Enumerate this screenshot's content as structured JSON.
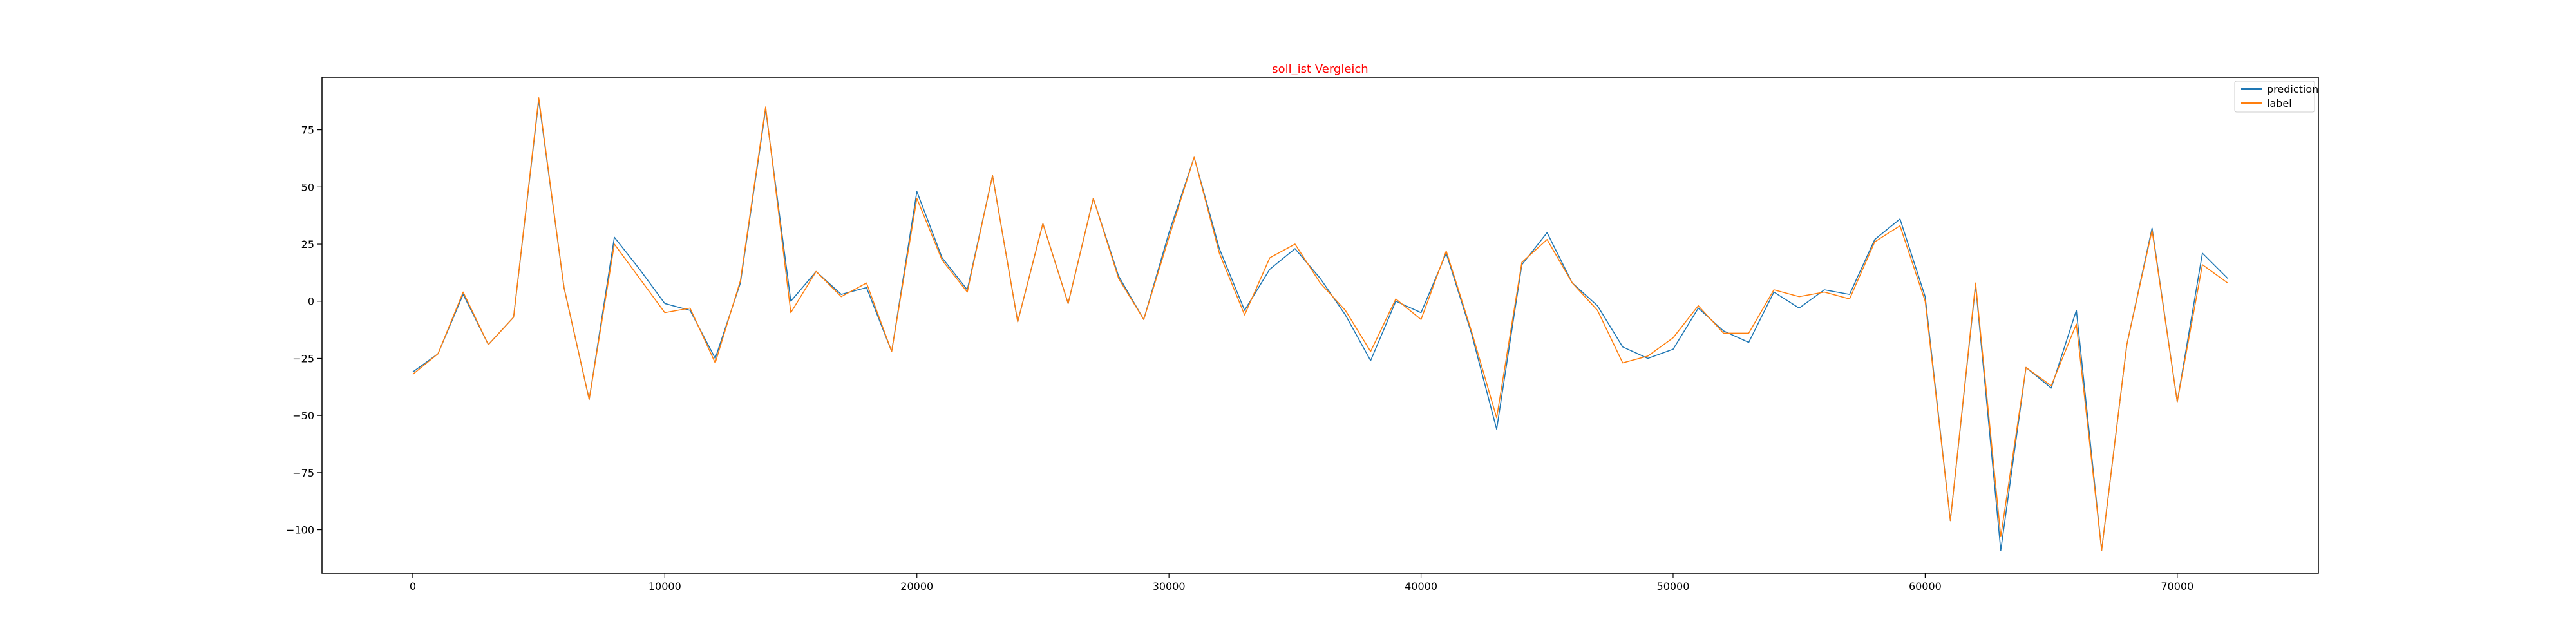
{
  "chart_data": {
    "type": "line",
    "title": "soll_ist Vergleich",
    "title_color": "#ff0000",
    "xlabel": "",
    "ylabel": "",
    "xlim": [
      -3600,
      75600
    ],
    "ylim": [
      -119,
      98
    ],
    "x_ticks": [
      0,
      10000,
      20000,
      30000,
      40000,
      50000,
      60000,
      70000
    ],
    "y_ticks": [
      -100,
      -75,
      -50,
      -25,
      0,
      25,
      50,
      75
    ],
    "grid": false,
    "legend_position": "top-right",
    "x": [
      0,
      1000,
      2000,
      3000,
      4000,
      5000,
      6000,
      7000,
      8000,
      9000,
      10000,
      11000,
      12000,
      13000,
      14000,
      15000,
      16000,
      17000,
      18000,
      19000,
      20000,
      21000,
      22000,
      23000,
      24000,
      25000,
      26000,
      27000,
      28000,
      29000,
      30000,
      31000,
      32000,
      33000,
      34000,
      35000,
      36000,
      37000,
      38000,
      39000,
      40000,
      41000,
      42000,
      43000,
      44000,
      45000,
      46000,
      47000,
      48000,
      49000,
      50000,
      51000,
      52000,
      53000,
      54000,
      55000,
      56000,
      57000,
      58000,
      59000,
      60000,
      61000,
      62000,
      63000,
      64000,
      65000,
      66000,
      67000,
      68000,
      69000,
      70000,
      71000,
      72000
    ],
    "series": [
      {
        "name": "prediction",
        "color": "#1f77b4",
        "values": [
          -31,
          -23,
          3,
          -19,
          -7,
          88,
          6,
          -43,
          28,
          14,
          -1,
          -4,
          -25,
          8,
          84,
          0,
          13,
          3,
          6,
          -22,
          48,
          19,
          5,
          55,
          -9,
          34,
          -1,
          45,
          11,
          -8,
          30,
          63,
          23,
          -4,
          14,
          23,
          10,
          -6,
          -26,
          0,
          -5,
          21,
          -14,
          -56,
          16,
          30,
          8,
          -2,
          -20,
          -25,
          -21,
          -3,
          -13,
          -18,
          4,
          -3,
          5,
          3,
          27,
          36,
          2,
          -96,
          7,
          -109,
          -29,
          -38,
          -4,
          -109,
          -19,
          32,
          -44,
          21,
          10
        ]
      },
      {
        "name": "label",
        "color": "#ff7f0e",
        "values": [
          -32,
          -23,
          4,
          -19,
          -7,
          89,
          6,
          -43,
          25,
          10,
          -5,
          -3,
          -27,
          9,
          85,
          -5,
          13,
          2,
          8,
          -22,
          45,
          18,
          4,
          55,
          -9,
          34,
          -1,
          45,
          10,
          -8,
          28,
          63,
          21,
          -6,
          19,
          25,
          8,
          -4,
          -22,
          1,
          -8,
          22,
          -13,
          -51,
          17,
          27,
          8,
          -4,
          -27,
          -24,
          -16,
          -2,
          -14,
          -14,
          5,
          2,
          4,
          1,
          26,
          33,
          0,
          -96,
          8,
          -103,
          -29,
          -37,
          -10,
          -109,
          -19,
          31,
          -44,
          16,
          8
        ]
      }
    ]
  }
}
